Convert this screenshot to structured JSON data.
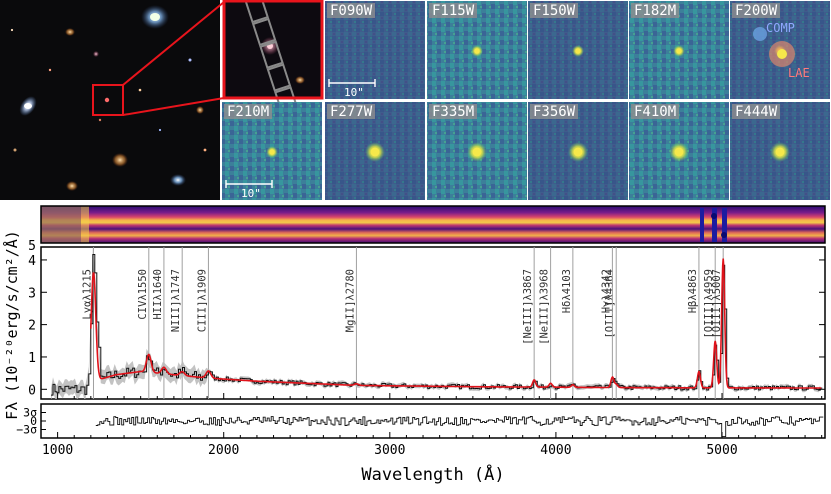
{
  "colors": {
    "background": "#ffffff",
    "cutout_box": "#e8141c",
    "spectrum": "#111111",
    "model": "#e0121a",
    "uncertainty": "#b8b8b8",
    "line_marker": "#a0a0a0",
    "stamp_bg": "#3f5d8c",
    "source_yellow": "#f6e84a",
    "comp_label": "#8fa8ff",
    "lae_label": "#ff7a7a"
  },
  "image_panels": {
    "filters": [
      "F090W",
      "F115W",
      "F150W",
      "F182M",
      "F200W",
      "F210M",
      "F277W",
      "F335M",
      "F356W",
      "F410M",
      "F444W"
    ],
    "source_visible": [
      false,
      true,
      true,
      true,
      true,
      true,
      true,
      true,
      true,
      true,
      true
    ],
    "scale_bar_label": "10\"",
    "annotations": {
      "comp": "COMP",
      "lae": "LAE"
    }
  },
  "chart_data": {
    "type": "line",
    "xlabel": "Wavelength (Å)",
    "ylabel": "Fλ (10⁻²⁰erg/s/cm²/Å)",
    "xlim": [
      900,
      5620
    ],
    "ylim": [
      -0.3,
      4.4
    ],
    "xticks": [
      1000,
      2000,
      3000,
      4000,
      5000
    ],
    "xtick_labels": [
      "1000",
      "2000",
      "3000",
      "4000",
      "5000"
    ],
    "yticks": [
      0,
      1,
      2,
      3,
      4
    ],
    "ytick_labels": [
      "0",
      "1",
      "2",
      "3",
      "4"
    ],
    "upper_tick_value": 5,
    "upper_tick_label": "5",
    "residual_ticks": [
      "3σ",
      "0",
      "−3σ"
    ],
    "residual_tick_values": [
      3,
      0,
      -3
    ],
    "residual_ylim": [
      -6,
      6
    ],
    "continuum_anchors": [
      [
        1150,
        0
      ],
      [
        1215,
        0
      ],
      [
        1250,
        0.3
      ],
      [
        1350,
        0.45
      ],
      [
        1500,
        0.55
      ],
      [
        1700,
        0.45
      ],
      [
        1900,
        0.35
      ],
      [
        2200,
        0.25
      ],
      [
        2800,
        0.12
      ],
      [
        3500,
        0.08
      ],
      [
        4500,
        0.05
      ],
      [
        5600,
        0.04
      ]
    ],
    "emission_lines": [
      {
        "label": "Lyαλ1215",
        "wave": 1216,
        "amp": 3.6,
        "sigma": 14
      },
      {
        "label": "CIVλ1550",
        "wave": 1549,
        "amp": 0.55,
        "sigma": 14
      },
      {
        "label": "HIIλ1640",
        "wave": 1640,
        "amp": 0.2,
        "sigma": 14
      },
      {
        "label": "NIII]λ1747",
        "wave": 1750,
        "amp": 0.12,
        "sigma": 14
      },
      {
        "label": "CIII]λ1909",
        "wave": 1908,
        "amp": 0.22,
        "sigma": 14
      },
      {
        "label": "MgII]λ2780",
        "wave": 2799,
        "amp": 0.05,
        "sigma": 12
      },
      {
        "label": "[NeIII]λ3867",
        "wave": 3869,
        "amp": 0.22,
        "sigma": 9
      },
      {
        "label": "[NeIII]λ3968",
        "wave": 3968,
        "amp": 0.12,
        "sigma": 9
      },
      {
        "label": "Hδλ4103",
        "wave": 4102,
        "amp": 0.08,
        "sigma": 9
      },
      {
        "label": "[OIII]λ4364",
        "wave": 4363,
        "amp": 0.1,
        "sigma": 9
      },
      {
        "label": "Hγλ4342",
        "wave": 4340,
        "amp": 0.32,
        "sigma": 9
      },
      {
        "label": "Hβλ4863",
        "wave": 4861,
        "amp": 0.5,
        "sigma": 9
      },
      {
        "label": "[OIII]λ4959",
        "wave": 4959,
        "amp": 1.45,
        "sigma": 9
      },
      {
        "label": "[OIII]λ5007",
        "wave": 5007,
        "amp": 4.0,
        "sigma": 9
      }
    ]
  }
}
